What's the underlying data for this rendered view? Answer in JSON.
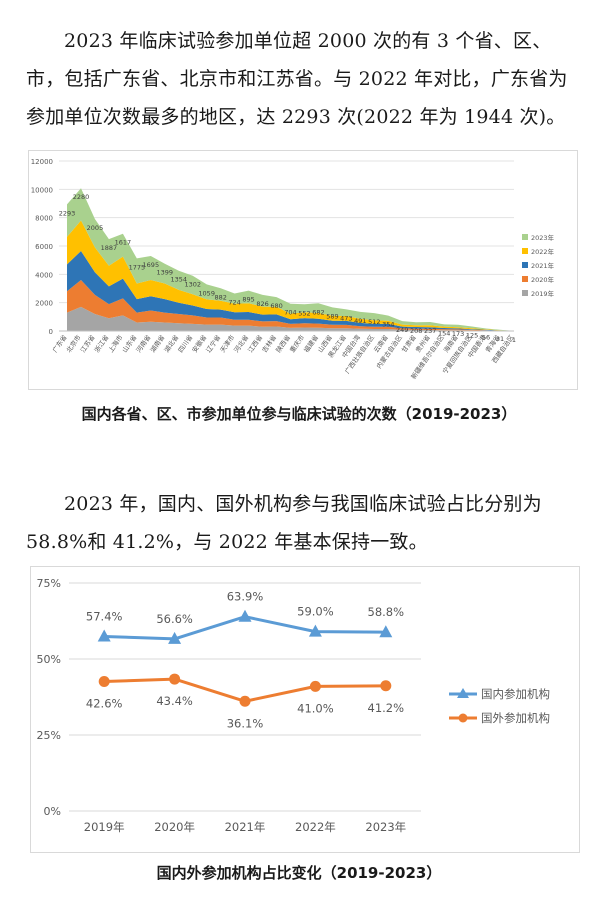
{
  "paragraph1": "2023 年临床试验参加单位超 2000 次的有 3 个省、区、市，包括广东省、北京市和江苏省。与 2022 年对比，广东省为参加单位次数最多的地区，达 2293 次(2022 年为 1944 次)。",
  "caption1": "国内各省、区、市参加单位参与临床试验的次数（2019-2023）",
  "paragraph2": "2023 年，国内、国外机构参与我国临床试验占比分别为 58.8%和 41.2%，与 2022 年基本保持一致。",
  "caption2": "国内外参加机构占比变化（2019-2023）",
  "chart_data": [
    {
      "type": "area",
      "stacked": true,
      "title": "",
      "xlabel": "",
      "ylabel": "",
      "ylim": [
        0,
        12000
      ],
      "yticks": [
        0,
        2000,
        4000,
        6000,
        8000,
        10000,
        12000
      ],
      "grid": true,
      "legend_position": "right",
      "categories": [
        "广东省",
        "北京市",
        "江苏省",
        "浙江省",
        "上海市",
        "山东省",
        "河南省",
        "湖南省",
        "湖北省",
        "四川省",
        "安徽省",
        "辽宁省",
        "天津市",
        "河北省",
        "江西省",
        "吉林省",
        "陕西省",
        "重庆市",
        "福建省",
        "山西省",
        "黑龙江省",
        "中国台湾",
        "广西壮族自治区",
        "云南省",
        "内蒙古自治区",
        "甘肃省",
        "贵州省",
        "新疆维吾尔自治区",
        "海南省",
        "宁夏回族自治区",
        "中国香港",
        "青海省",
        "西藏自治区"
      ],
      "series": [
        {
          "name": "2019年",
          "color": "#a5a5a5",
          "values": [
            1300,
            1700,
            1200,
            900,
            1100,
            600,
            650,
            600,
            550,
            500,
            450,
            450,
            380,
            380,
            300,
            320,
            220,
            250,
            230,
            200,
            200,
            160,
            140,
            140,
            90,
            80,
            70,
            60,
            50,
            40,
            30,
            10,
            1
          ]
        },
        {
          "name": "2020年",
          "color": "#ed7d31",
          "values": [
            1500,
            1900,
            1350,
            1000,
            1200,
            700,
            800,
            700,
            650,
            600,
            500,
            500,
            420,
            420,
            380,
            380,
            280,
            300,
            290,
            240,
            230,
            180,
            160,
            160,
            100,
            90,
            90,
            70,
            60,
            40,
            30,
            12,
            1
          ]
        },
        {
          "name": "2021年",
          "color": "#2e75b6",
          "values": [
            1900,
            2050,
            1600,
            1250,
            1400,
            950,
            1000,
            950,
            800,
            700,
            600,
            560,
            520,
            540,
            480,
            470,
            330,
            360,
            340,
            290,
            280,
            230,
            200,
            200,
            120,
            110,
            110,
            80,
            70,
            50,
            30,
            15,
            1
          ]
        },
        {
          "name": "2022年",
          "color": "#ffc000",
          "values": [
            1944,
            2150,
            1750,
            1450,
            1550,
            1100,
            1150,
            1100,
            900,
            800,
            680,
            620,
            600,
            620,
            560,
            540,
            390,
            420,
            410,
            350,
            340,
            290,
            250,
            230,
            140,
            130,
            130,
            100,
            85,
            60,
            30,
            18,
            1
          ]
        },
        {
          "name": "2023年",
          "color": "#a9d18e",
          "values": [
            2293,
            2280,
            2005,
            1887,
            1617,
            1775,
            1695,
            1399,
            1354,
            1302,
            1059,
            882,
            724,
            895,
            826,
            680,
            704,
            552,
            682,
            589,
            473,
            491,
            512,
            354,
            249,
            208,
            237,
            154,
            173,
            125,
            56,
            31,
            1
          ]
        }
      ],
      "data_labels_2023": [
        2293,
        2280,
        2005,
        1887,
        1617,
        1775,
        1695,
        1399,
        1354,
        1302,
        1059,
        882,
        724,
        895,
        826,
        680,
        704,
        552,
        682,
        589,
        473,
        491,
        512,
        354,
        249,
        208,
        237,
        154,
        173,
        125,
        56,
        31,
        1
      ]
    },
    {
      "type": "line",
      "title": "",
      "xlabel": "",
      "ylabel": "",
      "ylim": [
        0,
        75
      ],
      "yticks": [
        "0%",
        "25%",
        "50%",
        "75%"
      ],
      "grid": true,
      "legend_position": "right",
      "categories": [
        "2019年",
        "2020年",
        "2021年",
        "2022年",
        "2023年"
      ],
      "series": [
        {
          "name": "国内参加机构",
          "color": "#5b9bd5",
          "marker": "triangle",
          "values": [
            57.4,
            56.6,
            63.9,
            59.0,
            58.8
          ],
          "labels": [
            "57.4%",
            "56.6%",
            "63.9%",
            "59.0%",
            "58.8%"
          ]
        },
        {
          "name": "国外参加机构",
          "color": "#ed7d31",
          "marker": "circle",
          "values": [
            42.6,
            43.4,
            36.1,
            41.0,
            41.2
          ],
          "labels": [
            "42.6%",
            "43.4%",
            "36.1%",
            "41.0%",
            "41.2%"
          ]
        }
      ]
    }
  ]
}
